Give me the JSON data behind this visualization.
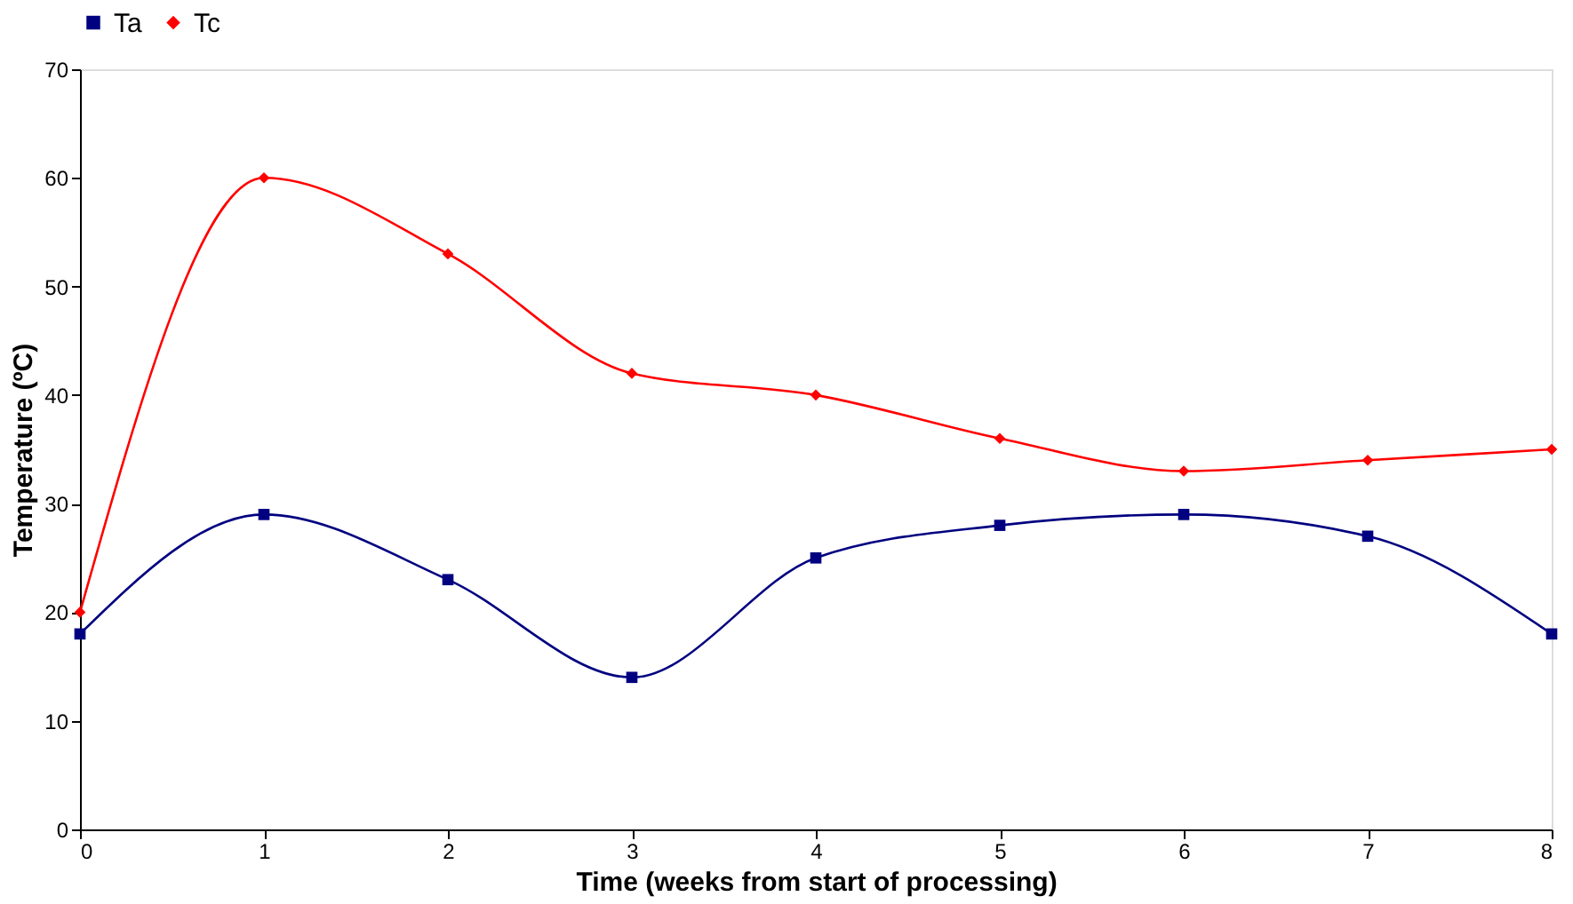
{
  "chart_data": {
    "type": "line",
    "xlabel": "Time (weeks from start of processing)",
    "ylabel": "Temperature (ºC)",
    "x": [
      0,
      1,
      2,
      3,
      4,
      5,
      6,
      7,
      8
    ],
    "series": [
      {
        "name": "Ta",
        "color": "#000080",
        "marker": "square",
        "values": [
          18,
          29,
          23,
          14,
          25,
          28,
          29,
          27,
          18
        ]
      },
      {
        "name": "Tc",
        "color": "#ff0000",
        "marker": "diamond",
        "values": [
          20,
          60,
          53,
          42,
          40,
          36,
          33,
          34,
          35
        ]
      }
    ],
    "xlim": [
      0,
      8
    ],
    "xticks": [
      0,
      1,
      2,
      3,
      4,
      5,
      6,
      7,
      8
    ],
    "ylim": [
      0,
      70
    ],
    "yticks": [
      0,
      10,
      20,
      30,
      40,
      50,
      60,
      70
    ],
    "grid": false,
    "legend": "top",
    "line_style": "solid"
  }
}
